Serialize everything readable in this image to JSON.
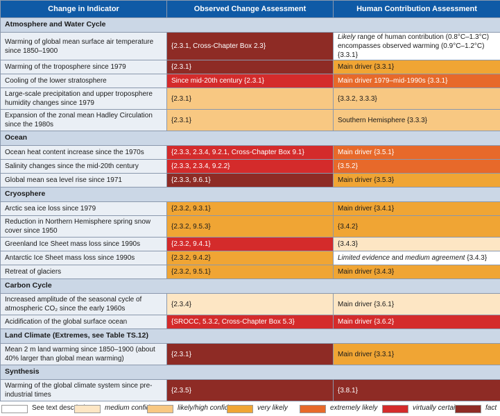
{
  "header": {
    "col1": "Change in Indicator",
    "col2": "Observed Change Assessment",
    "col3": "Human Contribution Assessment"
  },
  "colors": {
    "white": "#ffffff",
    "medium": "#fde6c4",
    "likely": "#f8c882",
    "very": "#f0a534",
    "extremely": "#e7692a",
    "virtually": "#d42b2b",
    "fact": "#8e2b25"
  },
  "sections": [
    {
      "title": "Atmosphere and Water Cycle",
      "rows": [
        {
          "indicator": "Warming of global mean surface air temperature since 1850–1900",
          "obs": "{2.3.1, Cross-Chapter Box 2.3}",
          "obs_level": "fact",
          "hum_parts": [
            {
              "t": "Likely",
              "i": true
            },
            {
              "t": " range of human contribution (0.8°C–1.3°C) encom­passes observed warming (0.9°C–1.2°C) {3.3.1}",
              "i": false
            }
          ],
          "hum_level": "white"
        },
        {
          "indicator": "Warming of the troposphere since 1979",
          "obs": "{2.3.1}",
          "obs_level": "fact",
          "hum_parts": [
            {
              "t": "Main driver {3.3.1}",
              "i": false
            }
          ],
          "hum_level": "very"
        },
        {
          "indicator": "Cooling of the lower stratosphere",
          "obs": "Since mid-20th century {2.3.1}",
          "obs_level": "virtually",
          "hum_parts": [
            {
              "t": "Main driver 1979–mid-1990s {3.3.1}",
              "i": false
            }
          ],
          "hum_level": "extremely"
        },
        {
          "indicator": "Large-scale precipitation and upper troposphere humidity changes since 1979",
          "obs": "{2.3.1}",
          "obs_level": "likely",
          "hum_parts": [
            {
              "t": "{3.3.2, 3.3.3}",
              "i": false
            }
          ],
          "hum_level": "likely"
        },
        {
          "indicator": "Expansion of the zonal mean Hadley Circulation since the 1980s",
          "obs": "{2.3.1}",
          "obs_level": "likely",
          "hum_parts": [
            {
              "t": "Southern Hemisphere {3.3.3}",
              "i": false
            }
          ],
          "hum_level": "likely"
        }
      ]
    },
    {
      "title": "Ocean",
      "rows": [
        {
          "indicator": "Ocean heat content increase since the 1970s",
          "obs": "{2.3.3, 2.3.4, 9.2.1, Cross-Chapter Box 9.1}",
          "obs_level": "virtually",
          "hum_parts": [
            {
              "t": "Main driver {3.5.1}",
              "i": false
            }
          ],
          "hum_level": "extremely"
        },
        {
          "indicator": "Salinity changes since the mid-20th century",
          "obs": "{2.3.3, 2.3.4, 9.2.2}",
          "obs_level": "virtually",
          "hum_parts": [
            {
              "t": "{3.5.2}",
              "i": false
            }
          ],
          "hum_level": "extremely"
        },
        {
          "indicator": "Global mean sea level rise since 1971",
          "obs": "{2.3.3, 9.6.1}",
          "obs_level": "fact",
          "hum_parts": [
            {
              "t": "Main driver {3.5.3}",
              "i": false
            }
          ],
          "hum_level": "very"
        }
      ]
    },
    {
      "title": "Cryosphere",
      "rows": [
        {
          "indicator": "Arctic sea ice loss since 1979",
          "obs": "{2.3.2, 9.3.1}",
          "obs_level": "very",
          "hum_parts": [
            {
              "t": "Main driver {3.4.1}",
              "i": false
            }
          ],
          "hum_level": "very"
        },
        {
          "indicator": "Reduction in Northern Hemisphere spring snow cover since 1950",
          "obs": "{2.3.2, 9.5.3}",
          "obs_level": "very",
          "hum_parts": [
            {
              "t": "{3.4.2}",
              "i": false
            }
          ],
          "hum_level": "very"
        },
        {
          "indicator": "Greenland Ice Sheet mass loss since 1990s",
          "obs": "{2.3.2, 9.4.1}",
          "obs_level": "virtually",
          "hum_parts": [
            {
              "t": "{3.4.3}",
              "i": false
            }
          ],
          "hum_level": "medium"
        },
        {
          "indicator": "Antarctic Ice Sheet mass loss since 1990s",
          "obs": "{2.3.2, 9.4.2}",
          "obs_level": "very",
          "hum_parts": [
            {
              "t": "Limited evidence",
              "i": true
            },
            {
              "t": " and ",
              "i": false
            },
            {
              "t": "medium agreement",
              "i": true
            },
            {
              "t": " {3.4.3}",
              "i": false
            }
          ],
          "hum_level": "white"
        },
        {
          "indicator": "Retreat of glaciers",
          "obs": "{2.3.2, 9.5.1}",
          "obs_level": "very",
          "hum_parts": [
            {
              "t": "Main driver {3.4.3}",
              "i": false
            }
          ],
          "hum_level": "very"
        }
      ]
    },
    {
      "title": "Carbon Cycle",
      "rows": [
        {
          "indicator": "Increased amplitude of the seasonal cycle of atmospheric CO₂ since the early 1960s",
          "obs": "{2.3.4}",
          "obs_level": "medium",
          "hum_parts": [
            {
              "t": "Main driver {3.6.1}",
              "i": false
            }
          ],
          "hum_level": "medium"
        },
        {
          "indicator": "Acidification of the global surface ocean",
          "obs": "{SROCC, 5.3.2, Cross-Chapter Box 5.3}",
          "obs_level": "virtually",
          "hum_parts": [
            {
              "t": "Main driver {3.6.2}",
              "i": false
            }
          ],
          "hum_level": "virtually"
        }
      ]
    },
    {
      "title": "Land Climate (Extremes, see Table TS.12)",
      "rows": [
        {
          "indicator": "Mean 2 m land warming since 1850–1900 (about 40% larger than global mean warming)",
          "obs": "{2.3.1}",
          "obs_level": "fact",
          "hum_parts": [
            {
              "t": "Main driver {3.3.1}",
              "i": false
            }
          ],
          "hum_level": "very"
        }
      ]
    },
    {
      "title": "Synthesis",
      "rows": [
        {
          "indicator": "Warming of the global climate system since pre-industrial times",
          "obs": "{2.3.5}",
          "obs_level": "fact",
          "hum_parts": [
            {
              "t": "{3.8.1}",
              "i": false
            }
          ],
          "hum_level": "fact"
        }
      ]
    }
  ],
  "legend": [
    {
      "level": "white",
      "label": "See text description",
      "italic": false
    },
    {
      "level": "medium",
      "label": "medium confidence",
      "italic": true
    },
    {
      "level": "likely",
      "label": "likely/high confidence",
      "italic": true
    },
    {
      "level": "very",
      "label": "very likely",
      "italic": true
    },
    {
      "level": "extremely",
      "label": "extremely likely",
      "italic": true
    },
    {
      "level": "virtually",
      "label": "virtually certain",
      "italic": true
    },
    {
      "level": "fact",
      "label": "fact",
      "italic": true
    }
  ]
}
